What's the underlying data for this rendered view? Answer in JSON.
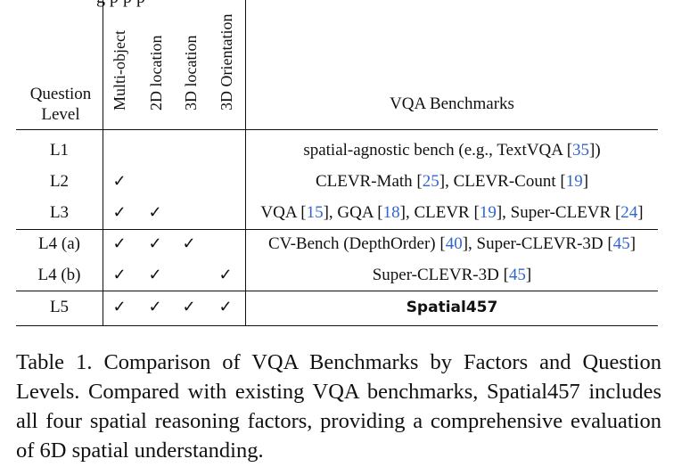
{
  "top_fragment": "g       p     p                    p",
  "header": {
    "question_level": [
      "Question",
      "Level"
    ],
    "factors": [
      "Multi-object",
      "2D location",
      "3D location",
      "3D Orientation"
    ],
    "benchmarks": "VQA Benchmarks"
  },
  "rows": [
    {
      "level": "L1",
      "checks": [
        false,
        false,
        false,
        false
      ],
      "bench": [
        {
          "t": "spatial-agnostic bench (e.g., TextVQA ["
        },
        {
          "t": "35",
          "c": true
        },
        {
          "t": "])"
        }
      ]
    },
    {
      "level": "L2",
      "checks": [
        true,
        false,
        false,
        false
      ],
      "bench": [
        {
          "t": "CLEVR-Math ["
        },
        {
          "t": "25",
          "c": true
        },
        {
          "t": "], CLEVR-Count ["
        },
        {
          "t": "19",
          "c": true
        },
        {
          "t": "]"
        }
      ]
    },
    {
      "level": "L3",
      "checks": [
        true,
        true,
        false,
        false
      ],
      "bench": [
        {
          "t": "VQA ["
        },
        {
          "t": "15",
          "c": true
        },
        {
          "t": "], GQA ["
        },
        {
          "t": "18",
          "c": true
        },
        {
          "t": "], CLEVR ["
        },
        {
          "t": "19",
          "c": true
        },
        {
          "t": "], Super-CLEVR ["
        },
        {
          "t": "24",
          "c": true
        },
        {
          "t": "]"
        }
      ]
    },
    {
      "level": "L4 (a)",
      "checks": [
        true,
        true,
        true,
        false
      ],
      "bench": [
        {
          "t": "CV-Bench (DepthOrder) ["
        },
        {
          "t": "40",
          "c": true
        },
        {
          "t": "], Super-CLEVR-3D ["
        },
        {
          "t": "45",
          "c": true
        },
        {
          "t": "]"
        }
      ]
    },
    {
      "level": "L4 (b)",
      "checks": [
        true,
        true,
        false,
        true
      ],
      "bench": [
        {
          "t": "Super-CLEVR-3D ["
        },
        {
          "t": "45",
          "c": true
        },
        {
          "t": "]"
        }
      ]
    },
    {
      "level": "L5",
      "checks": [
        true,
        true,
        true,
        true
      ],
      "bold": true,
      "bench": [
        {
          "t": "Spatial457"
        }
      ]
    }
  ],
  "check_symbol": "✓",
  "caption": "Table 1. Comparison of VQA Benchmarks by Factors and Question Levels.  Compared with existing VQA benchmarks, Spatial457 includes all four spatial reasoning factors, providing a comprehensive evaluation of 6D spatial understanding.",
  "colors": {
    "cite": "#3366cc",
    "text": "#111111"
  }
}
